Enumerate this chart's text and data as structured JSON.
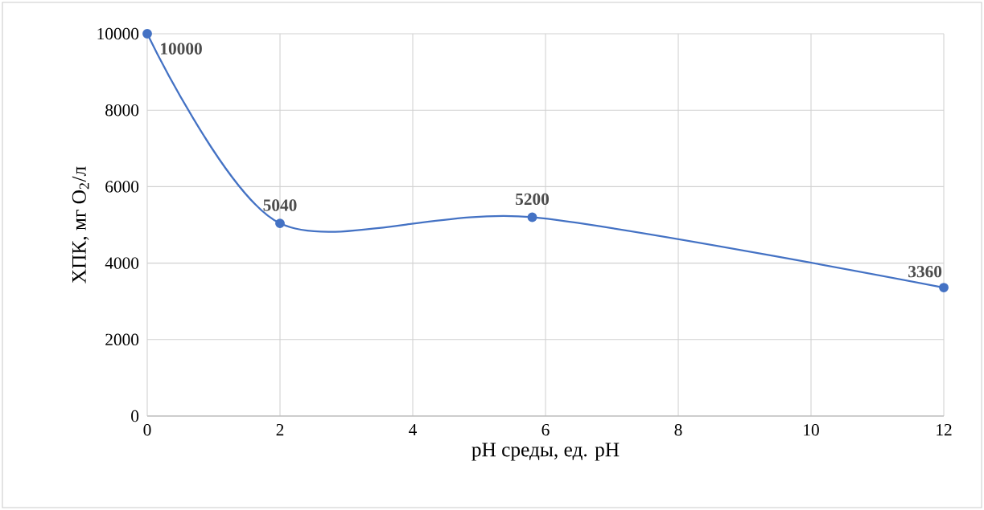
{
  "chart_data": {
    "type": "line",
    "xlabel": "pH среды, ед. pH",
    "ylabel": "ХПК, мг O$_{2}$/л",
    "x": [
      0,
      2,
      5.8,
      12
    ],
    "values": [
      10000,
      5040,
      5200,
      3360
    ],
    "color": "#4472c4",
    "xlim": [
      0,
      12
    ],
    "ylim": [
      0,
      10000
    ],
    "xticks": [
      0,
      2,
      4,
      6,
      8,
      10,
      12
    ],
    "yticks": [
      0,
      2000,
      4000,
      6000,
      8000,
      10000
    ],
    "grid": true,
    "marker": "circle",
    "line_style": "solid",
    "data_labels": true
  }
}
